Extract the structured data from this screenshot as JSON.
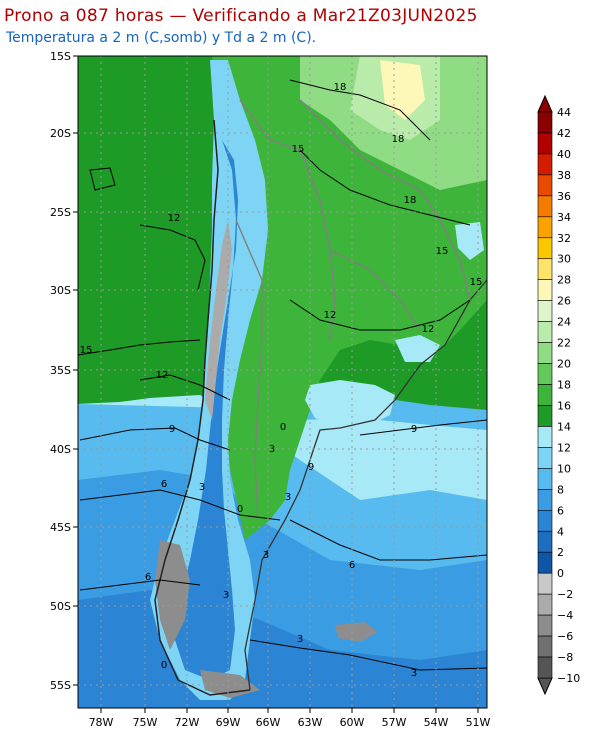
{
  "title": "Prono a 087 horas — Verificando a Mar21Z03JUN2025",
  "subtitle": "Temperatura a 2 m (C,somb) y Td a 2 m (C).",
  "lat_labels": [
    "15S",
    "20S",
    "25S",
    "30S",
    "35S",
    "40S",
    "45S",
    "50S",
    "55S"
  ],
  "lon_labels": [
    "78W",
    "75W",
    "72W",
    "69W",
    "66W",
    "63W",
    "60W",
    "57W",
    "54W",
    "51W"
  ],
  "colorbar": {
    "labels": [
      "44",
      "42",
      "40",
      "38",
      "36",
      "34",
      "32",
      "30",
      "28",
      "26",
      "24",
      "22",
      "20",
      "18",
      "16",
      "14",
      "12",
      "10",
      "8",
      "6",
      "4",
      "2",
      "0",
      "−2",
      "−4",
      "−6",
      "−8",
      "−10"
    ],
    "colors": [
      "#8b0000",
      "#b10000",
      "#d31c00",
      "#e84a00",
      "#f47a00",
      "#f9a200",
      "#fbc700",
      "#fde36a",
      "#fdf7b8",
      "#dcf5cd",
      "#b9ebaa",
      "#90dc85",
      "#63c95a",
      "#3db43a",
      "#1e9a27",
      "#a7e9f6",
      "#7ed4f5",
      "#58bbf0",
      "#3a9de3",
      "#2b85d4",
      "#1d6ebf",
      "#0f56a6",
      "#c9c9c9",
      "#ababab",
      "#8d8d8d",
      "#707070",
      "#555555"
    ]
  },
  "contour_labels": [
    "18",
    "18",
    "18",
    "15",
    "15",
    "15",
    "12",
    "12",
    "12",
    "12",
    "15",
    "9",
    "9",
    "9",
    "0",
    "3",
    "6",
    "3",
    "0",
    "6",
    "3",
    "3",
    "6",
    "3",
    "3",
    "0",
    "3"
  ],
  "icons": {
    "map": "map-area",
    "colorbar_up": "triangle-up-icon",
    "colorbar_down": "triangle-down-icon"
  }
}
